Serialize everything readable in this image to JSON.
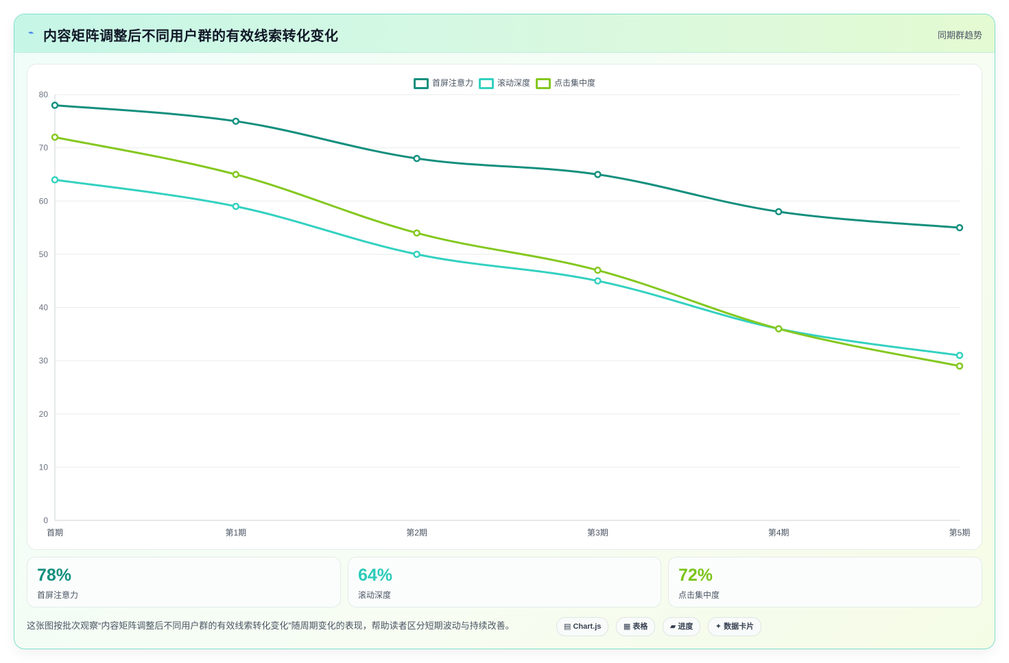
{
  "header": {
    "icon": "trend-icon",
    "title": "内容矩阵调整后不同用户群的有效线索转化变化",
    "tag": "同期群趋势"
  },
  "chart_data": {
    "type": "line",
    "title": "",
    "xlabel": "",
    "ylabel": "",
    "categories": [
      "首期",
      "第1期",
      "第2期",
      "第3期",
      "第4期",
      "第5期"
    ],
    "ylim": [
      0,
      80
    ],
    "yticks": [
      0,
      10,
      20,
      30,
      40,
      50,
      60,
      70,
      80
    ],
    "grid": true,
    "legend_position": "top-center",
    "series": [
      {
        "name": "首屏注意力",
        "color": "#138f7e",
        "values": [
          78,
          75,
          68,
          65,
          58,
          55
        ]
      },
      {
        "name": "滚动深度",
        "color": "#33d1c0",
        "values": [
          64,
          59,
          50,
          45,
          36,
          31
        ]
      },
      {
        "name": "点击集中度",
        "color": "#84c81f",
        "values": [
          72,
          65,
          54,
          47,
          36,
          29
        ]
      }
    ]
  },
  "stats": [
    {
      "value": "78%",
      "label": "首屏注意力",
      "color": "#138f7e"
    },
    {
      "value": "64%",
      "label": "滚动深度",
      "color": "#2ccbb8"
    },
    {
      "value": "72%",
      "label": "点击集中度",
      "color": "#7cc41c"
    }
  ],
  "footnote": "这张图按批次观察“内容矩阵调整后不同用户群的有效线索转化变化”随周期变化的表现，帮助读者区分短期波动与持续改善。",
  "pills": [
    {
      "icon": "chart-icon",
      "glyph": "▤",
      "label": "Chart.js"
    },
    {
      "icon": "table-icon",
      "glyph": "▦",
      "label": "表格"
    },
    {
      "icon": "progress-icon",
      "glyph": "▰",
      "label": "进度"
    },
    {
      "icon": "sparkle-icon",
      "glyph": "✦",
      "label": "数据卡片"
    }
  ]
}
